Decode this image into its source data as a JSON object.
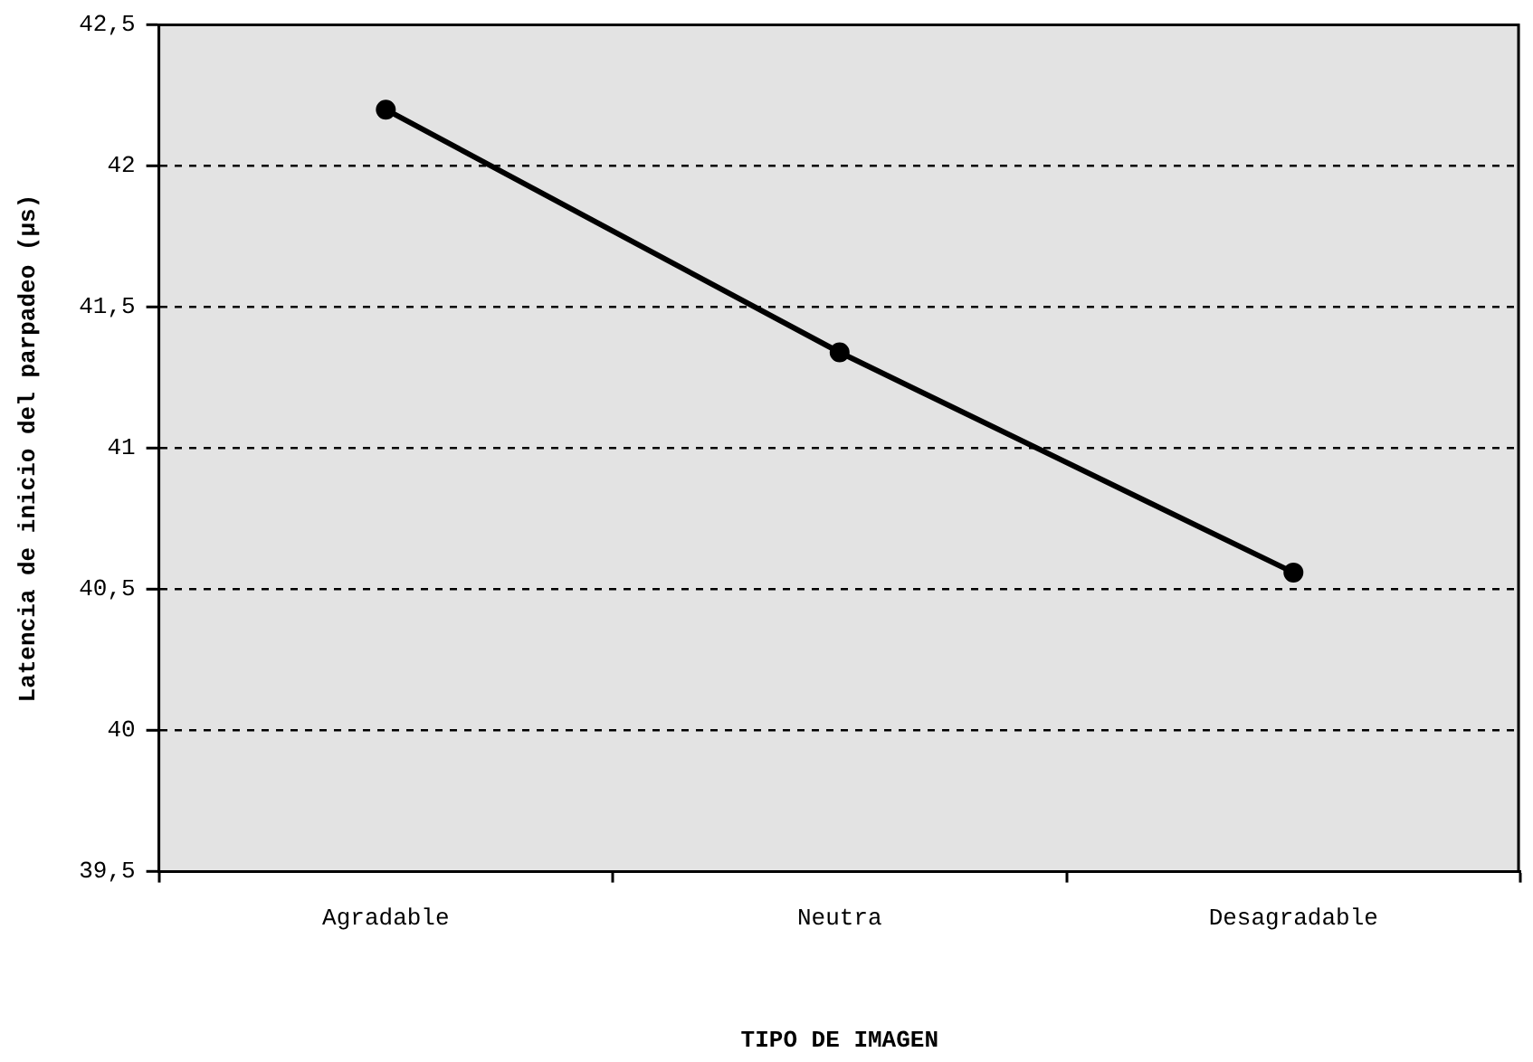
{
  "chart_data": {
    "type": "line",
    "xlabel": "TIPO DE IMAGEN",
    "ylabel": "Latencia de inicio del parpadeo (µs)",
    "categories": [
      "Agradable",
      "Neutra",
      "Desagradable"
    ],
    "series": [
      {
        "color": "#000000",
        "values": [
          42.2,
          41.34,
          40.56
        ]
      }
    ],
    "ylim": [
      39.5,
      42.5
    ],
    "yticks": [
      {
        "value": 39.5,
        "label": "39,5"
      },
      40,
      {
        "value": 40.5,
        "label": "40,5"
      },
      41,
      {
        "value": 41.5,
        "label": "41,5"
      },
      42,
      {
        "value": 42.5,
        "label": "42,5"
      }
    ],
    "grid": "y",
    "legend": false,
    "marker": "circle",
    "line_style": "solid"
  }
}
